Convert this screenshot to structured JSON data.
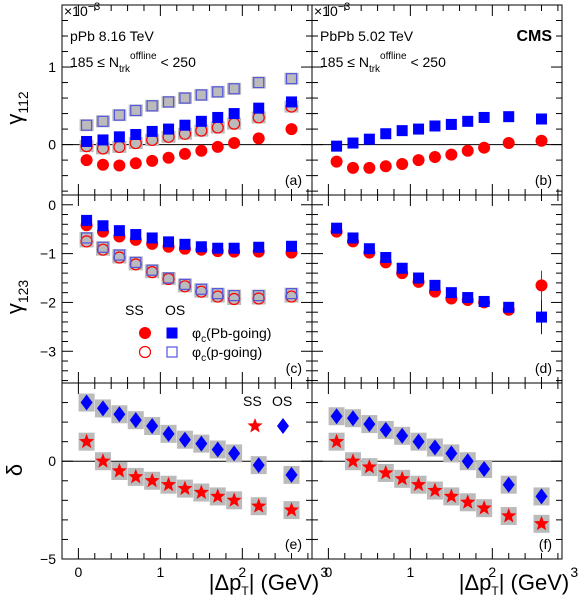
{
  "chart_data": {
    "type": "scatter",
    "x_tick_labels": [
      "0",
      "1",
      "2",
      "3"
    ],
    "xlabel": "|Δp_T| (GeV)",
    "scale_label": "×10^-3",
    "cms_label": "CMS",
    "colors": {
      "ss": "#ff0000",
      "os": "#0000ff",
      "os_open": "#5555dd",
      "error_box": "#bbbbbb"
    },
    "rows": [
      {
        "key": "g112",
        "ylabel": "γ_112",
        "ylim": [
          -0.65,
          1.8
        ],
        "yticks": [
          1,
          0
        ],
        "ytick_labels": [
          "1",
          "0"
        ]
      },
      {
        "key": "g123",
        "ylabel": "γ_123",
        "ylim": [
          -3.65,
          0.2
        ],
        "yticks": [
          0,
          -1,
          -2,
          -3
        ],
        "ytick_labels": [
          "0",
          "−1",
          "−2",
          "−3"
        ]
      },
      {
        "key": "delta",
        "ylabel": "δ",
        "ylim": [
          -5.0,
          4.0
        ],
        "yticks": [
          0,
          -5
        ],
        "ytick_labels": [
          "0",
          "−5"
        ]
      }
    ],
    "columns": [
      {
        "key": "pPb",
        "system": "pPb 8.16 TeV",
        "cut": "185 ≤ N_trk^offline < 250",
        "xlim": [
          -0.2,
          2.85
        ]
      },
      {
        "key": "PbPb",
        "system": "PbPb 5.02 TeV",
        "cut": "185 ≤ N_trk^offline < 250",
        "xlim": [
          -0.2,
          2.85
        ]
      }
    ],
    "panel_labels": [
      "(a)",
      "(b)",
      "(c)",
      "(d)",
      "(e)",
      "(f)"
    ],
    "legend_gamma": {
      "ss_header": "SS",
      "os_header": "OS",
      "pb_going": "φ_c(Pb-going)",
      "p_going": "φ_c(p-going)"
    },
    "legend_delta": {
      "ss_header": "SS",
      "os_header": "OS"
    },
    "x_ppb": [
      0.1,
      0.3,
      0.5,
      0.7,
      0.9,
      1.1,
      1.3,
      1.5,
      1.7,
      1.9,
      2.2,
      2.6
    ],
    "x_pbpb": [
      0.1,
      0.3,
      0.5,
      0.7,
      0.9,
      1.1,
      1.3,
      1.5,
      1.7,
      1.9,
      2.2,
      2.6
    ],
    "series": [
      {
        "name": "SS φ_c(Pb-going)",
        "panel": "a",
        "style": "ss_filled",
        "values": [
          -0.2,
          -0.26,
          -0.27,
          -0.24,
          -0.21,
          -0.17,
          -0.12,
          -0.08,
          -0.03,
          0.02,
          0.08,
          0.2
        ]
      },
      {
        "name": "SS φ_c(p-going)",
        "panel": "a",
        "style": "ss_open",
        "values": [
          -0.02,
          -0.05,
          -0.03,
          0.02,
          0.06,
          0.1,
          0.14,
          0.18,
          0.22,
          0.27,
          0.35,
          0.49
        ]
      },
      {
        "name": "OS φ_c(Pb-going)",
        "panel": "a",
        "style": "os_filled",
        "values": [
          0.04,
          0.06,
          0.1,
          0.13,
          0.17,
          0.2,
          0.25,
          0.3,
          0.35,
          0.4,
          0.47,
          0.55
        ]
      },
      {
        "name": "OS φ_c(p-going)",
        "panel": "a",
        "style": "os_open",
        "values": [
          0.25,
          0.3,
          0.38,
          0.44,
          0.5,
          0.55,
          0.6,
          0.64,
          0.68,
          0.72,
          0.8,
          0.85
        ]
      },
      {
        "name": "SS",
        "panel": "b",
        "style": "ss_filled",
        "values": [
          -0.22,
          -0.3,
          -0.3,
          -0.28,
          -0.25,
          -0.2,
          -0.16,
          -0.13,
          -0.08,
          -0.04,
          0.02,
          0.05
        ]
      },
      {
        "name": "OS",
        "panel": "b",
        "style": "os_filled",
        "values": [
          -0.02,
          0.02,
          0.07,
          0.14,
          0.18,
          0.2,
          0.24,
          0.26,
          0.3,
          0.35,
          0.36,
          0.33
        ]
      },
      {
        "name": "SS φ_c(Pb-going)",
        "panel": "c",
        "style": "ss_filled",
        "values": [
          -0.42,
          -0.55,
          -0.65,
          -0.72,
          -0.8,
          -0.86,
          -0.9,
          -0.92,
          -0.95,
          -0.96,
          -0.96,
          -0.98
        ]
      },
      {
        "name": "SS φ_c(p-going)",
        "panel": "c",
        "style": "ss_open",
        "values": [
          -0.75,
          -0.92,
          -1.08,
          -1.22,
          -1.38,
          -1.52,
          -1.67,
          -1.78,
          -1.88,
          -1.93,
          -1.92,
          -1.88
        ]
      },
      {
        "name": "OS φ_c(Pb-going)",
        "panel": "c",
        "style": "os_filled",
        "values": [
          -0.32,
          -0.43,
          -0.53,
          -0.61,
          -0.68,
          -0.76,
          -0.81,
          -0.86,
          -0.89,
          -0.89,
          -0.87,
          -0.85
        ]
      },
      {
        "name": "OS φ_c(p-going)",
        "panel": "c",
        "style": "os_open",
        "values": [
          -0.68,
          -0.87,
          -1.03,
          -1.18,
          -1.34,
          -1.5,
          -1.63,
          -1.73,
          -1.82,
          -1.86,
          -1.86,
          -1.82
        ]
      },
      {
        "name": "SS",
        "panel": "d",
        "style": "ss_filled",
        "values": [
          -0.55,
          -0.75,
          -0.98,
          -1.18,
          -1.4,
          -1.58,
          -1.78,
          -1.92,
          -1.95,
          -2.0,
          -2.15,
          -1.65
        ]
      },
      {
        "name": "OS",
        "panel": "d",
        "style": "os_filled",
        "values": [
          -0.48,
          -0.68,
          -0.9,
          -1.08,
          -1.3,
          -1.5,
          -1.65,
          -1.8,
          -1.9,
          -1.98,
          -2.1,
          -2.3
        ]
      },
      {
        "name": "SS",
        "panel": "e",
        "style": "ss_star",
        "values": [
          1.0,
          0.0,
          -0.5,
          -0.8,
          -1.0,
          -1.2,
          -1.4,
          -1.6,
          -1.8,
          -2.0,
          -2.3,
          -2.5
        ]
      },
      {
        "name": "OS",
        "panel": "e",
        "style": "os_diamond",
        "values": [
          3.0,
          2.7,
          2.4,
          2.1,
          1.8,
          1.4,
          1.1,
          0.9,
          0.6,
          0.4,
          -0.2,
          -0.7
        ]
      },
      {
        "name": "SS",
        "panel": "f",
        "style": "ss_star",
        "values": [
          1.0,
          0.0,
          -0.3,
          -0.6,
          -0.9,
          -1.2,
          -1.5,
          -1.8,
          -2.1,
          -2.4,
          -2.8,
          -3.2
        ]
      },
      {
        "name": "OS",
        "panel": "f",
        "style": "os_diamond",
        "values": [
          2.3,
          2.2,
          1.9,
          1.6,
          1.3,
          1.0,
          0.7,
          0.4,
          0.0,
          -0.4,
          -1.2,
          -1.8
        ]
      }
    ]
  }
}
